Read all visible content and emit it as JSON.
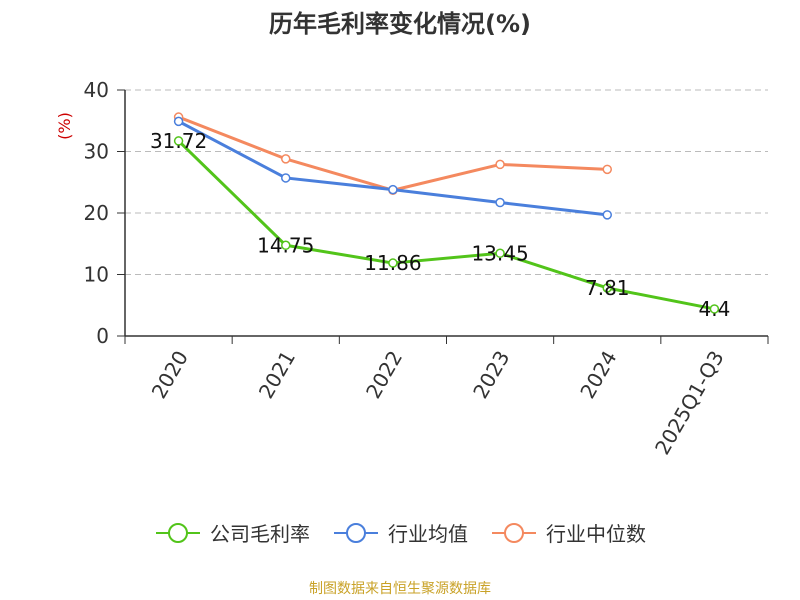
{
  "chart_data": {
    "type": "line",
    "title": "历年毛利率变化情况(%)",
    "ylabel": "(%)",
    "categories": [
      "2020",
      "2021",
      "2022",
      "2023",
      "2024",
      "2025Q1-Q3"
    ],
    "ylim": [
      0,
      40
    ],
    "yticks": [
      0,
      10,
      20,
      30,
      40
    ],
    "grid": true,
    "legend_position": "bottom",
    "series": [
      {
        "name": "公司毛利率",
        "color": "#52c41a",
        "values": [
          31.72,
          14.75,
          11.86,
          13.45,
          7.81,
          4.4
        ],
        "labels": [
          "31.72",
          "14.75",
          "11.86",
          "13.45",
          "7.81",
          "4.4"
        ],
        "show_labels": true
      },
      {
        "name": "行业均值",
        "color": "#4a7fdc",
        "values": [
          34.9,
          25.7,
          23.8,
          21.7,
          19.7,
          null
        ],
        "show_labels": false
      },
      {
        "name": "行业中位数",
        "color": "#f4895f",
        "values": [
          35.6,
          28.8,
          23.7,
          27.9,
          27.1,
          null
        ],
        "show_labels": false
      }
    ]
  },
  "footer": {
    "source": "制图数据来自恒生聚源数据库"
  }
}
